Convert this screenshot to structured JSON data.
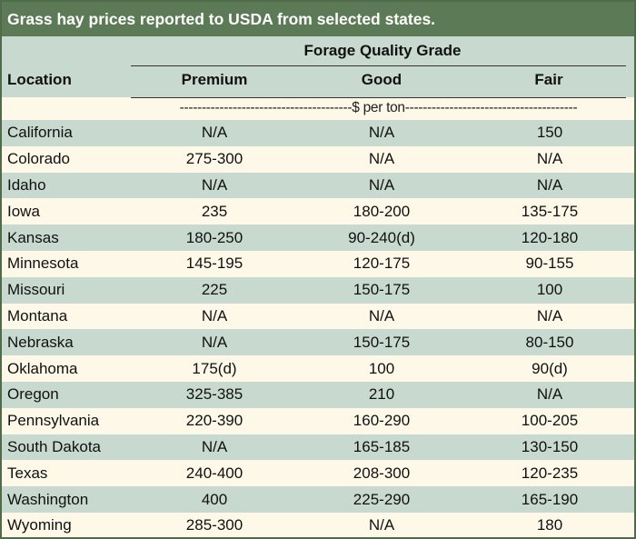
{
  "title": "Grass hay prices reported to USDA from selected states.",
  "header": {
    "group_label": "Forage Quality Grade",
    "location": "Location",
    "columns": [
      "Premium",
      "Good",
      "Fair"
    ]
  },
  "units": "---------------------------------------$ per ton---------------------------------------",
  "rows": [
    {
      "location": "California",
      "premium": "N/A",
      "good": "N/A",
      "fair": "150"
    },
    {
      "location": "Colorado",
      "premium": "275-300",
      "good": "N/A",
      "fair": "N/A"
    },
    {
      "location": "Idaho",
      "premium": "N/A",
      "good": "N/A",
      "fair": "N/A"
    },
    {
      "location": "Iowa",
      "premium": "235",
      "good": "180-200",
      "fair": "135-175"
    },
    {
      "location": "Kansas",
      "premium": "180-250",
      "good": "90-240(d)",
      "fair": "120-180"
    },
    {
      "location": "Minnesota",
      "premium": "145-195",
      "good": "120-175",
      "fair": "90-155"
    },
    {
      "location": "Missouri",
      "premium": "225",
      "good": "150-175",
      "fair": "100"
    },
    {
      "location": "Montana",
      "premium": "N/A",
      "good": "N/A",
      "fair": "N/A"
    },
    {
      "location": "Nebraska",
      "premium": "N/A",
      "good": "150-175",
      "fair": "80-150"
    },
    {
      "location": "Oklahoma",
      "premium": "175(d)",
      "good": "100",
      "fair": "90(d)"
    },
    {
      "location": "Oregon",
      "premium": "325-385",
      "good": "210",
      "fair": "N/A"
    },
    {
      "location": "Pennsylvania",
      "premium": "220-390",
      "good": "160-290",
      "fair": "100-205"
    },
    {
      "location": "South Dakota",
      "premium": "N/A",
      "good": "165-185",
      "fair": "130-150"
    },
    {
      "location": "Texas",
      "premium": "240-400",
      "good": "208-300",
      "fair": "120-235"
    },
    {
      "location": "Washington",
      "premium": "400",
      "good": "225-290",
      "fair": "165-190"
    },
    {
      "location": "Wyoming",
      "premium": "285-300",
      "good": "N/A",
      "fair": "180"
    }
  ],
  "colors": {
    "title_bg": "#5c7a55",
    "band_green": "#c8d9cf",
    "band_cream": "#fdf8e8",
    "border": "#4f6b4a"
  }
}
